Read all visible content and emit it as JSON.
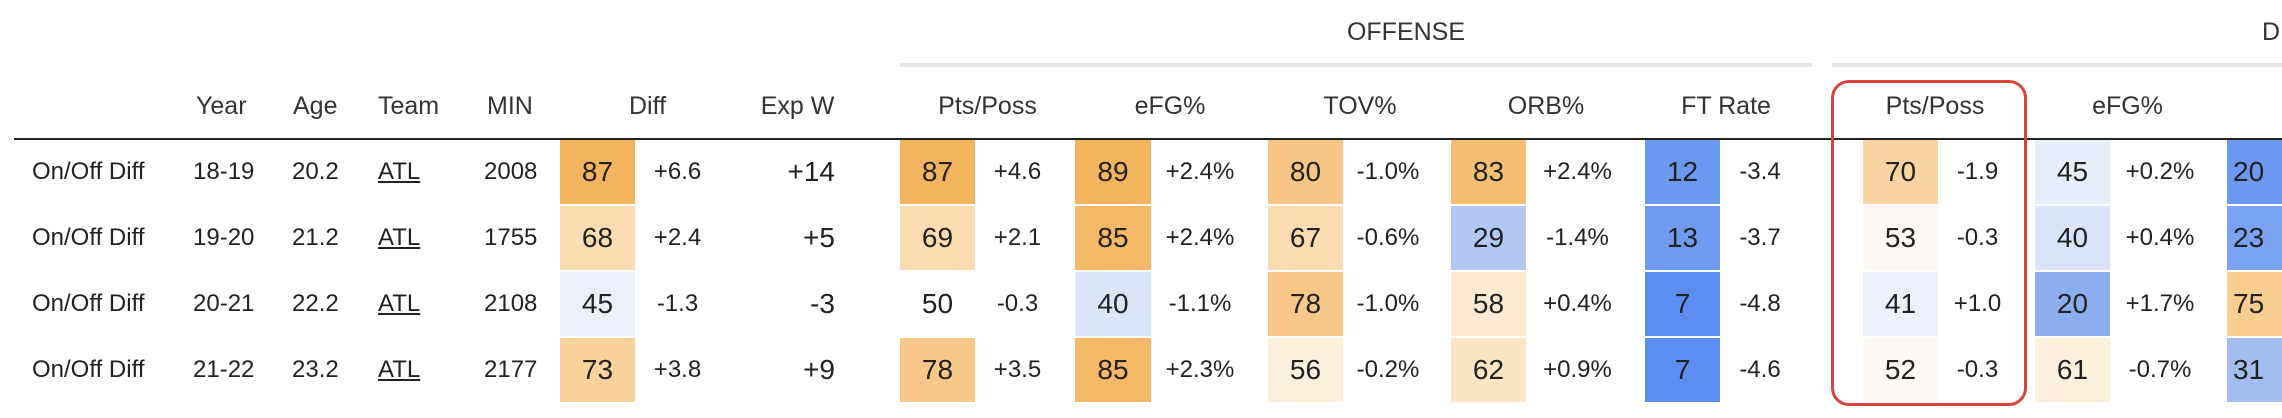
{
  "groups": {
    "offense": "OFFENSE",
    "defense_partial": "D"
  },
  "headers": {
    "year": "Year",
    "age": "Age",
    "team": "Team",
    "min": "MIN",
    "diff": "Diff",
    "expw": "Exp W",
    "off_pts_poss": "Pts/Poss",
    "off_efg": "eFG%",
    "off_tov": "TOV%",
    "off_orb": "ORB%",
    "off_ft_rate": "FT Rate",
    "def_pts_poss": "Pts/Poss",
    "def_efg": "eFG%"
  },
  "rows": [
    {
      "label": "On/Off Diff",
      "year": "18-19",
      "age": "20.2",
      "team": "ATL",
      "min": "2008",
      "diff_pct": "87",
      "diff": "+6.6",
      "expw": "+14",
      "off_pts_pct": "87",
      "off_pts": "+4.6",
      "off_efg_pct": "89",
      "off_efg": "+2.4%",
      "off_tov_pct": "80",
      "off_tov": "-1.0%",
      "off_orb_pct": "83",
      "off_orb": "+2.4%",
      "off_ftr_pct": "12",
      "off_ftr": "-3.4",
      "def_pts_pct": "70",
      "def_pts": "-1.9",
      "def_efg_pct": "45",
      "def_efg": "+0.2%",
      "def_next_pct": "20"
    },
    {
      "label": "On/Off Diff",
      "year": "19-20",
      "age": "21.2",
      "team": "ATL",
      "min": "1755",
      "diff_pct": "68",
      "diff": "+2.4",
      "expw": "+5",
      "off_pts_pct": "69",
      "off_pts": "+2.1",
      "off_efg_pct": "85",
      "off_efg": "+2.4%",
      "off_tov_pct": "67",
      "off_tov": "-0.6%",
      "off_orb_pct": "29",
      "off_orb": "-1.4%",
      "off_ftr_pct": "13",
      "off_ftr": "-3.7",
      "def_pts_pct": "53",
      "def_pts": "-0.3",
      "def_efg_pct": "40",
      "def_efg": "+0.4%",
      "def_next_pct": "23"
    },
    {
      "label": "On/Off Diff",
      "year": "20-21",
      "age": "22.2",
      "team": "ATL",
      "min": "2108",
      "diff_pct": "45",
      "diff": "-1.3",
      "expw": "-3",
      "off_pts_pct": "50",
      "off_pts": "-0.3",
      "off_efg_pct": "40",
      "off_efg": "-1.1%",
      "off_tov_pct": "78",
      "off_tov": "-1.0%",
      "off_orb_pct": "58",
      "off_orb": "+0.4%",
      "off_ftr_pct": "7",
      "off_ftr": "-4.8",
      "def_pts_pct": "41",
      "def_pts": "+1.0",
      "def_efg_pct": "20",
      "def_efg": "+1.7%",
      "def_next_pct": "75"
    },
    {
      "label": "On/Off Diff",
      "year": "21-22",
      "age": "23.2",
      "team": "ATL",
      "min": "2177",
      "diff_pct": "73",
      "diff": "+3.8",
      "expw": "+9",
      "off_pts_pct": "78",
      "off_pts": "+3.5",
      "off_efg_pct": "85",
      "off_efg": "+2.3%",
      "off_tov_pct": "56",
      "off_tov": "-0.2%",
      "off_orb_pct": "62",
      "off_orb": "+0.9%",
      "off_ftr_pct": "7",
      "off_ftr": "-4.6",
      "def_pts_pct": "52",
      "def_pts": "-0.3",
      "def_efg_pct": "61",
      "def_efg": "-0.7%",
      "def_next_pct": "31"
    }
  ],
  "colors": {
    "orange_strong": "#f3b45e",
    "orange_mid": "#f7cb8c",
    "orange_light": "#fae0ba",
    "orange_faint": "#fdf0dc",
    "neutral": "#fdfaf4",
    "blue_faint": "#e8eefb",
    "blue_light": "#b5c9f2",
    "blue_mid": "#8fb0ee",
    "blue_strong": "#5b8ef0",
    "highlight_border": "#d9443a"
  }
}
